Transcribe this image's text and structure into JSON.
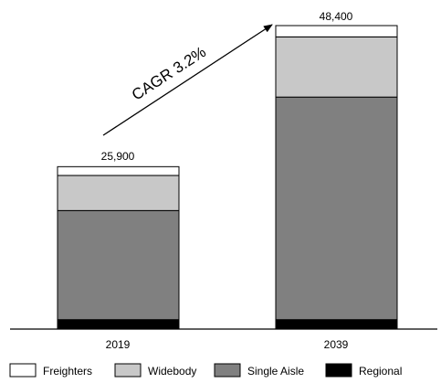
{
  "chart_data": {
    "type": "bar",
    "stacked": true,
    "categories": [
      "2019",
      "2039"
    ],
    "series": [
      {
        "name": "Regional",
        "values": [
          1500,
          1500
        ],
        "color": "#000000"
      },
      {
        "name": "Single Aisle",
        "values": [
          17400,
          35500
        ],
        "color": "#808080"
      },
      {
        "name": "Widebody",
        "values": [
          5600,
          9600
        ],
        "color": "#c8c8c8"
      },
      {
        "name": "Freighters",
        "values": [
          1400,
          1800
        ],
        "color": "#ffffff"
      }
    ],
    "totals": [
      "25,900",
      "48,400"
    ],
    "annotation": "CAGR 3.2%",
    "ylim": [
      0,
      48400
    ],
    "grid": false,
    "legend_position": "bottom"
  },
  "legend": [
    {
      "label": "Freighters",
      "color": "#ffffff"
    },
    {
      "label": "Widebody",
      "color": "#c8c8c8"
    },
    {
      "label": "Single Aisle",
      "color": "#808080"
    },
    {
      "label": "Regional",
      "color": "#000000"
    }
  ]
}
